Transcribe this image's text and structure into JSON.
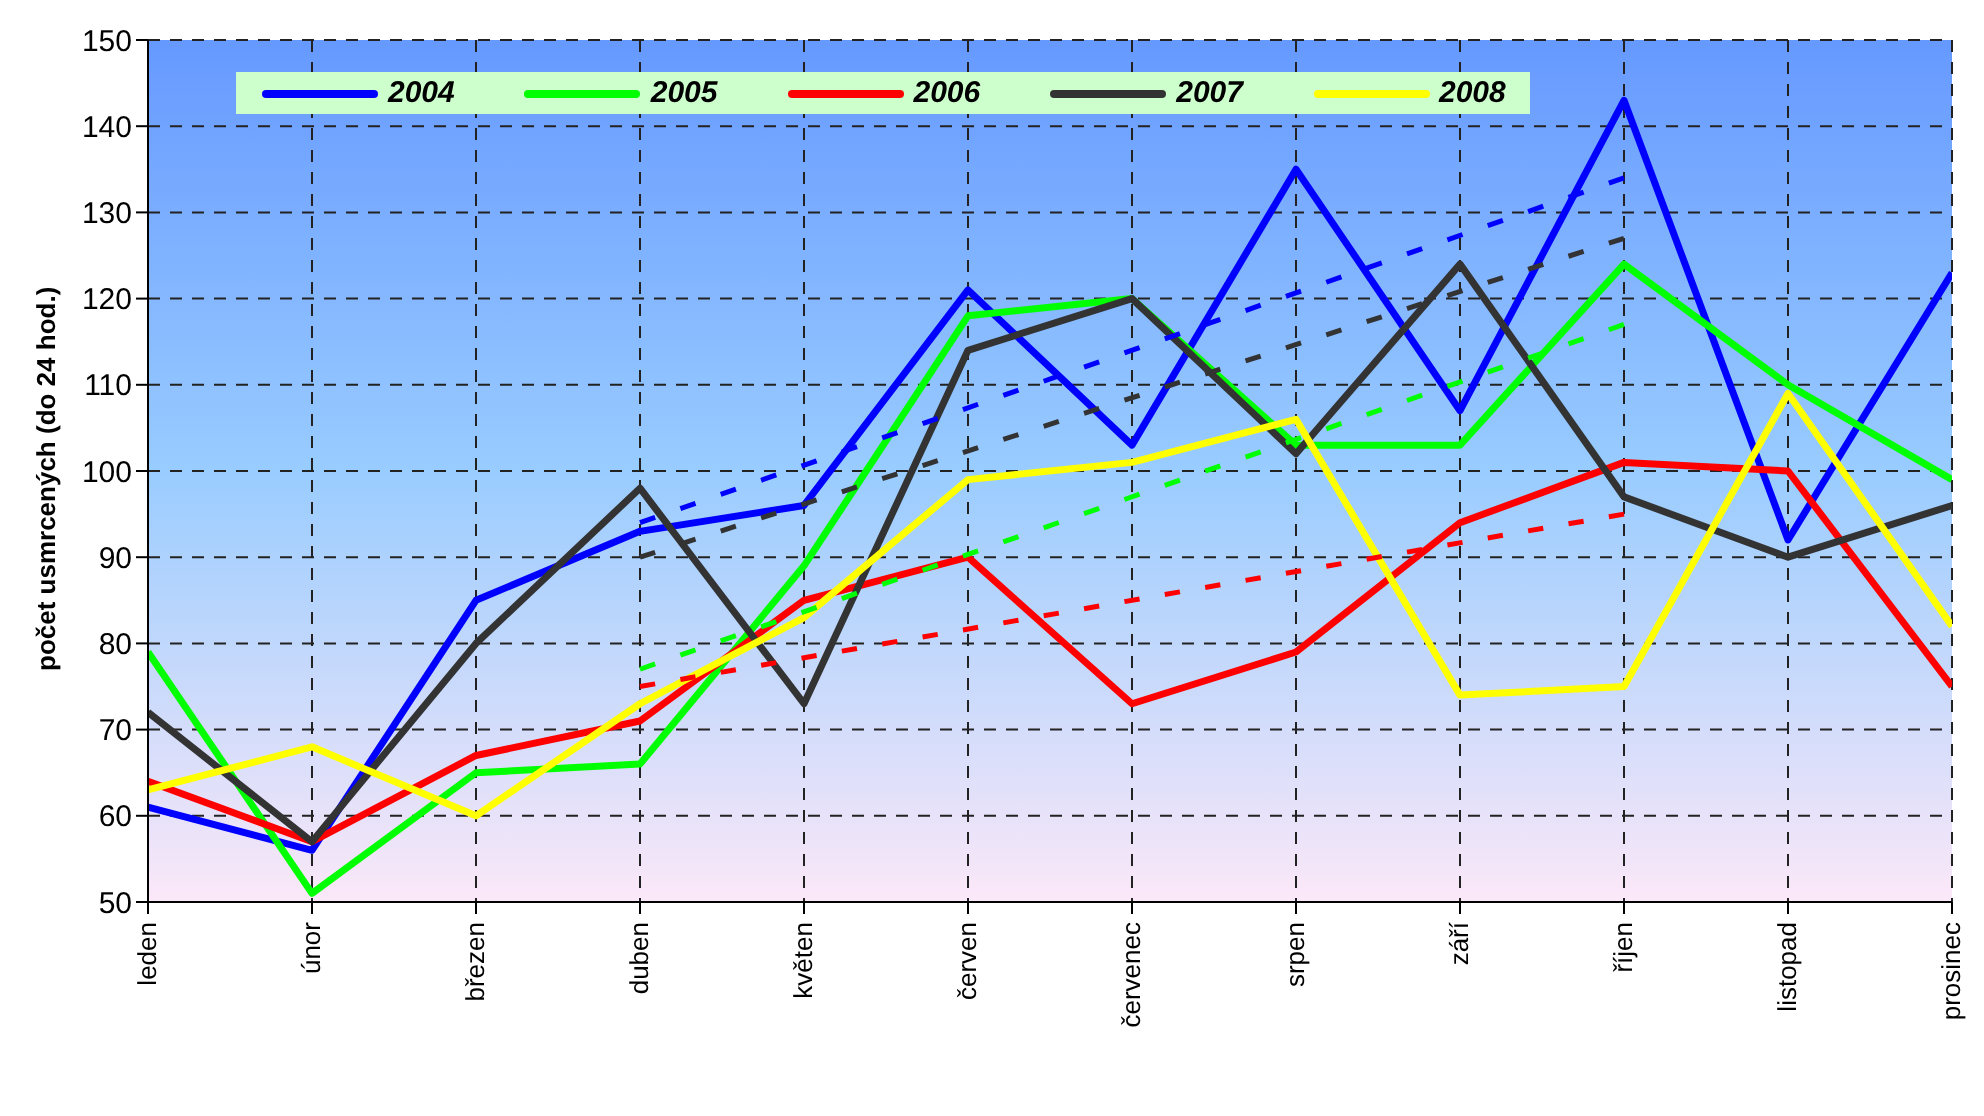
{
  "chart_data": {
    "type": "line",
    "ylabel": "počet usmrcených (do 24 hod.)",
    "categories": [
      "leden",
      "únor",
      "březen",
      "duben",
      "květen",
      "červen",
      "červenec",
      "srpen",
      "září",
      "říjen",
      "listopad",
      "prosinec"
    ],
    "ylim": [
      50,
      150
    ],
    "yticks": [
      50,
      60,
      70,
      80,
      90,
      100,
      110,
      120,
      130,
      140,
      150
    ],
    "grid": true,
    "legend": "top",
    "series": [
      {
        "name": "2004",
        "color": "#0000ff",
        "values": [
          61,
          56,
          85,
          93,
          96,
          121,
          103,
          135,
          107,
          143,
          92,
          123
        ]
      },
      {
        "name": "2005",
        "color": "#00ff00",
        "values": [
          79,
          51,
          65,
          66,
          89,
          118,
          120,
          103,
          103,
          124,
          110,
          99
        ]
      },
      {
        "name": "2006",
        "color": "#ff0000",
        "values": [
          64,
          57,
          67,
          71,
          85,
          90,
          73,
          79,
          94,
          101,
          100,
          75
        ]
      },
      {
        "name": "2007",
        "color": "#333333",
        "values": [
          72,
          57,
          80,
          98,
          73,
          114,
          120,
          102,
          124,
          97,
          90,
          96
        ]
      },
      {
        "name": "2008",
        "color": "#ffff00",
        "values": [
          63,
          68,
          60,
          73,
          83,
          99,
          101,
          106,
          74,
          75,
          109,
          82
        ]
      },
      {
        "type": "line",
        "line_style": "dotted",
        "color": "#0000ff",
        "x": [
          "duben",
          "říjen"
        ],
        "values": [
          94,
          134
        ]
      },
      {
        "type": "line",
        "line_style": "dotted",
        "color": "#00ff00",
        "x": [
          "duben",
          "říjen"
        ],
        "values": [
          77,
          117
        ]
      },
      {
        "type": "line",
        "line_style": "dotted",
        "color": "#ff0000",
        "x": [
          "duben",
          "říjen"
        ],
        "values": [
          75,
          95
        ]
      },
      {
        "type": "line",
        "line_style": "dotted",
        "color": "#333333",
        "x": [
          "duben",
          "říjen"
        ],
        "values": [
          90,
          127
        ]
      }
    ]
  }
}
